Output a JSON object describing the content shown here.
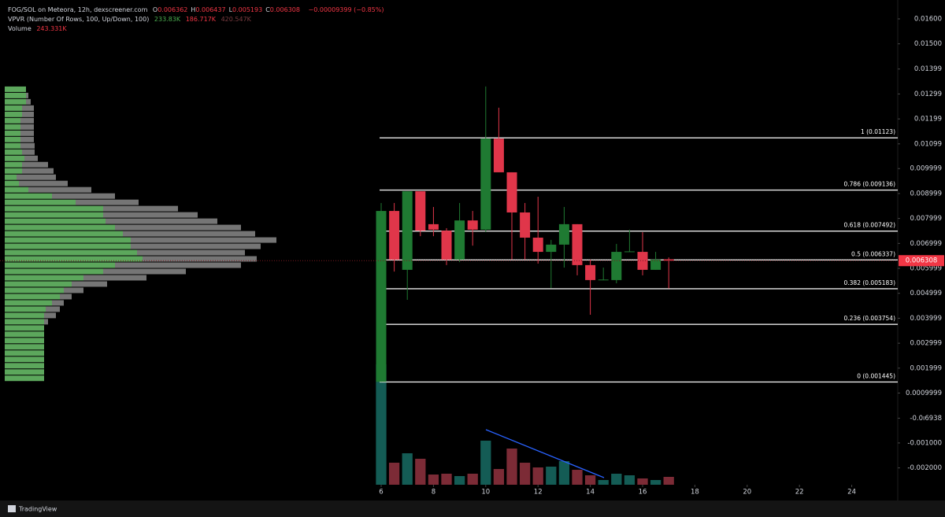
{
  "header": {
    "symbol": "FOG/SOL on Meteora, 12h, dexscreener.com",
    "ohlc": [
      {
        "key": "O",
        "value": "0.006362"
      },
      {
        "key": "H",
        "value": "0.006437"
      },
      {
        "key": "L",
        "value": "0.005193"
      },
      {
        "key": "C",
        "value": "0.006308"
      }
    ],
    "change": "−0.00009399 (−0.85%)",
    "vpvr": {
      "title": "VPVR (Number Of Rows, 100, Up/Down, 100)",
      "up": "233.83K",
      "down": "186.717K",
      "total": "420.547K"
    },
    "volume": {
      "title": "Volume",
      "value": "243.331K"
    }
  },
  "footer": {
    "brand": "TradingView"
  },
  "chart_data": {
    "type": "candlestick",
    "x": [
      6,
      6.5,
      7,
      7.5,
      8,
      8.5,
      9,
      9.5,
      10,
      10.5,
      11,
      11.5,
      12,
      12.5,
      13,
      13.5,
      14,
      14.5,
      15,
      15.5,
      16,
      16.5,
      17
    ],
    "open": [
      0.00145,
      0.0083,
      0.00594,
      0.00909,
      0.00777,
      0.00751,
      0.00635,
      0.00792,
      0.00755,
      0.0112,
      0.00985,
      0.00824,
      0.00723,
      0.00666,
      0.00695,
      0.00777,
      0.00613,
      0.00553,
      0.00553,
      0.00666,
      0.00666,
      0.00594,
      0.006362
    ],
    "high": [
      0.00862,
      0.00862,
      0.00909,
      0.00909,
      0.00846,
      0.00761,
      0.00862,
      0.0083,
      0.01329,
      0.01244,
      0.00985,
      0.00862,
      0.00887,
      0.00714,
      0.00846,
      0.00777,
      0.00635,
      0.00603,
      0.00698,
      0.00755,
      0.00745,
      0.00666,
      0.006437
    ],
    "low": [
      0.00145,
      0.00587,
      0.00474,
      0.00729,
      0.00729,
      0.00613,
      0.00625,
      0.00691,
      0.00745,
      0.00985,
      0.00635,
      0.00635,
      0.00619,
      0.00521,
      0.00603,
      0.00572,
      0.00414,
      0.00553,
      0.0054,
      0.00666,
      0.00572,
      0.00594,
      0.005193
    ],
    "close": [
      0.0083,
      0.00635,
      0.00909,
      0.00751,
      0.00755,
      0.00635,
      0.00792,
      0.00755,
      0.0112,
      0.00985,
      0.00824,
      0.00723,
      0.00666,
      0.00695,
      0.00777,
      0.00613,
      0.00553,
      0.00555,
      0.00666,
      0.00668,
      0.00594,
      0.00635,
      0.006308
    ],
    "volume": [
      3723000,
      681000,
      973000,
      803000,
      316000,
      341000,
      268000,
      341000,
      1363000,
      487000,
      1119000,
      681000,
      535000,
      560000,
      730000,
      462000,
      292000,
      146000,
      341000,
      292000,
      195000,
      146000,
      243331
    ],
    "up_color": "#1f7a32",
    "down_color": "#e0364a",
    "volume_up_color": "#145c55",
    "volume_down_color": "#7c2b36",
    "xlim": [
      -8.58,
      25.76
    ],
    "xticks": [
      6,
      8,
      10,
      12,
      14,
      16,
      18,
      20,
      22,
      24
    ],
    "ylim": [
      -0.002675,
      0.016757
    ],
    "yticks": [
      {
        "value": 0.016,
        "label": "0.01600"
      },
      {
        "value": 0.015,
        "label": "0.01500"
      },
      0.01399,
      0.01299,
      0.01199,
      0.01099,
      0.009999,
      0.008999,
      0.007999,
      0.006999,
      0.005999,
      0.004999,
      0.003999,
      0.002999,
      0.001999,
      0.0009999,
      {
        "value": -6.938e-06,
        "label": "-0.0ı6938"
      },
      {
        "value": -0.001,
        "label": "-0.001000"
      },
      {
        "value": -0.002,
        "label": "-0.002000"
      }
    ],
    "fib_levels": [
      {
        "label": "1 (0.01123)",
        "value": 0.01123
      },
      {
        "label": "0.786 (0.009136)",
        "value": 0.009136
      },
      {
        "label": "0.618 (0.007492)",
        "value": 0.007492
      },
      {
        "label": "0.5 (0.006337)",
        "value": 0.006337
      },
      {
        "label": "0.382 (0.005183)",
        "value": 0.005183
      },
      {
        "label": "0.236 (0.003754)",
        "value": 0.003754
      },
      {
        "label": "0 (0.001445)",
        "value": 0.001445
      }
    ],
    "profile": {
      "up_color": "#6cc46c",
      "down_color": "#8a8a8a",
      "up": [
        27,
        27,
        27,
        22,
        22,
        20,
        20,
        20,
        20,
        20,
        22,
        25,
        22,
        22,
        15,
        18,
        30,
        60,
        90,
        125,
        125,
        128,
        140,
        150,
        160,
        160,
        168,
        175,
        140,
        125,
        100,
        85,
        75,
        70,
        60,
        52,
        50,
        50,
        50,
        50,
        50,
        50,
        50,
        50,
        50,
        50,
        50
      ],
      "down": [
        0,
        3,
        6,
        15,
        15,
        17,
        17,
        17,
        17,
        18,
        16,
        17,
        33,
        40,
        50,
        62,
        80,
        80,
        80,
        95,
        120,
        142,
        160,
        168,
        185,
        165,
        137,
        145,
        160,
        105,
        80,
        45,
        25,
        15,
        15,
        18,
        15,
        5,
        0,
        0,
        0,
        0,
        0,
        0,
        0,
        0,
        0
      ]
    }
  }
}
